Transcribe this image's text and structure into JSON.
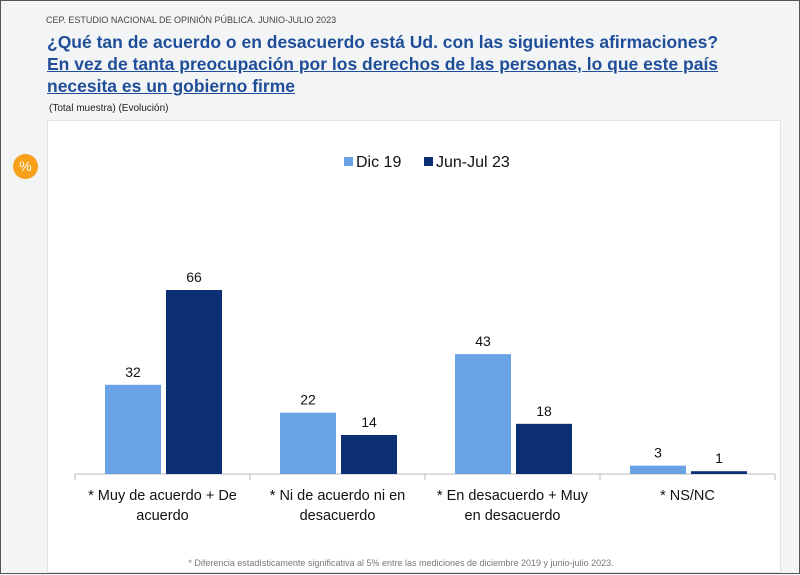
{
  "header": {
    "source": "CEP. ESTUDIO NACIONAL DE OPINIÓN PÚBLICA. JUNIO-JULIO 2023",
    "question": "¿Qué tan de acuerdo o en desacuerdo está Ud. con las siguientes afirmaciones?",
    "statement": "En vez de tanta preocupación por los derechos de las personas, lo que este país necesita es un gobierno firme",
    "subtitle": "(Total muestra) (Evolución)",
    "badge": "%"
  },
  "chart_data": {
    "type": "bar",
    "categories": [
      [
        "* Muy de acuerdo + De",
        "acuerdo"
      ],
      [
        "* Ni de acuerdo ni en",
        "desacuerdo"
      ],
      [
        "* En desacuerdo + Muy",
        "en desacuerdo"
      ],
      [
        "* NS/NC"
      ]
    ],
    "series": [
      {
        "name": "Dic 19",
        "color": "#6aa2e6",
        "values": [
          32,
          22,
          43,
          3
        ]
      },
      {
        "name": "Jun-Jul 23",
        "color": "#0b2f72",
        "values": [
          66,
          14,
          18,
          1
        ]
      }
    ],
    "ylim": [
      0,
      70
    ],
    "legend": "top-center",
    "grid": false
  },
  "footnote": "* Diferencia estadísticamente significativa al 5% entre las mediciones de diciembre 2019 y junio-julio 2023."
}
